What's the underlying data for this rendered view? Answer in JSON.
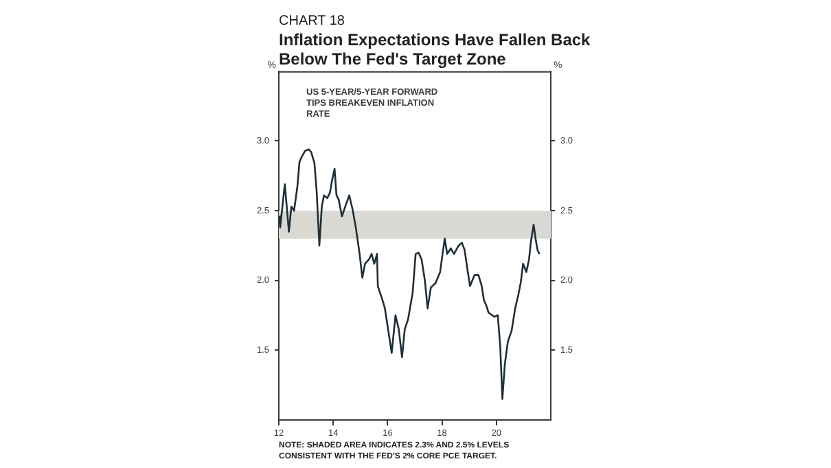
{
  "chart_data": {
    "type": "line",
    "title": "Inflation Expectations Have Fallen Back Below The Fed's Target Zone",
    "ylabel": "%",
    "y2label": "%",
    "annotations": [
      "CHART 18",
      "NOTE: SHADED AREA INDICATES 2.3% AND 2.5% LEVELS CONSISTENT WITH THE FED'S 2% CORE PCE TARGET."
    ],
    "xlim": [
      2012,
      2022
    ],
    "xticks": [
      {
        "value": 2012,
        "label": "12"
      },
      {
        "value": 2014,
        "label": "14"
      },
      {
        "value": 2016,
        "label": "16"
      },
      {
        "value": 2018,
        "label": "18"
      },
      {
        "value": 2020,
        "label": "20"
      }
    ],
    "ylim": [
      1.0,
      3.5
    ],
    "yticks": [
      {
        "value": 1.5,
        "label": "1.5"
      },
      {
        "value": 2.0,
        "label": "2.0"
      },
      {
        "value": 2.5,
        "label": "2.5"
      },
      {
        "value": 3.0,
        "label": "3.0"
      }
    ],
    "y2lim": [
      1.0,
      3.5
    ],
    "y2ticks": [
      {
        "value": 1.5,
        "label": "1.5"
      },
      {
        "value": 2.0,
        "label": "2.0"
      },
      {
        "value": 2.5,
        "label": "2.5"
      },
      {
        "value": 3.0,
        "label": "3.0"
      }
    ],
    "grid": false,
    "legend": false,
    "marker": "none",
    "line_style": "solid",
    "bands": [
      {
        "axis": "y",
        "from": 2.3,
        "to": 2.5,
        "color": "#d9d8d2"
      }
    ],
    "series": [
      {
        "name": "US 5-YEAR/5-YEAR FORWARD TIPS BREAKEVEN INFLATION RATE",
        "color": "#1e2f38",
        "x": [
          2012.0,
          2012.05,
          2012.22,
          2012.37,
          2012.46,
          2012.56,
          2012.68,
          2012.76,
          2012.85,
          2012.97,
          2013.1,
          2013.19,
          2013.31,
          2013.39,
          2013.49,
          2013.58,
          2013.66,
          2013.78,
          2013.88,
          2013.95,
          2014.05,
          2014.12,
          2014.2,
          2014.32,
          2014.46,
          2014.59,
          2014.71,
          2014.83,
          2014.97,
          2015.07,
          2015.17,
          2015.31,
          2015.41,
          2015.51,
          2015.61,
          2015.64,
          2015.81,
          2015.9,
          2016.15,
          2016.29,
          2016.41,
          2016.53,
          2016.63,
          2016.75,
          2016.92,
          2017.03,
          2017.14,
          2017.25,
          2017.37,
          2017.47,
          2017.59,
          2017.76,
          2017.93,
          2018.02,
          2018.1,
          2018.19,
          2018.32,
          2018.44,
          2018.61,
          2018.73,
          2018.83,
          2018.95,
          2019.03,
          2019.2,
          2019.34,
          2019.46,
          2019.54,
          2019.63,
          2019.71,
          2019.92,
          2020.05,
          2020.14,
          2020.22,
          2020.31,
          2020.42,
          2020.56,
          2020.69,
          2020.81,
          2020.9,
          2020.98,
          2021.1,
          2021.2,
          2021.27,
          2021.37,
          2021.44,
          2021.51,
          2021.58
        ],
        "values": [
          2.46,
          2.38,
          2.69,
          2.35,
          2.53,
          2.5,
          2.67,
          2.85,
          2.89,
          2.93,
          2.94,
          2.92,
          2.84,
          2.64,
          2.25,
          2.53,
          2.61,
          2.59,
          2.63,
          2.71,
          2.8,
          2.61,
          2.58,
          2.46,
          2.54,
          2.61,
          2.51,
          2.38,
          2.19,
          2.02,
          2.12,
          2.15,
          2.19,
          2.12,
          2.19,
          1.96,
          1.86,
          1.8,
          1.48,
          1.75,
          1.65,
          1.45,
          1.65,
          1.72,
          1.91,
          2.19,
          2.2,
          2.15,
          2.0,
          1.8,
          1.95,
          1.98,
          2.06,
          2.19,
          2.3,
          2.19,
          2.23,
          2.19,
          2.25,
          2.27,
          2.22,
          2.06,
          1.96,
          2.04,
          2.04,
          1.96,
          1.86,
          1.82,
          1.77,
          1.74,
          1.75,
          1.53,
          1.15,
          1.4,
          1.56,
          1.64,
          1.8,
          1.9,
          1.99,
          2.12,
          2.06,
          2.15,
          2.28,
          2.4,
          2.3,
          2.22,
          2.19
        ]
      }
    ]
  }
}
